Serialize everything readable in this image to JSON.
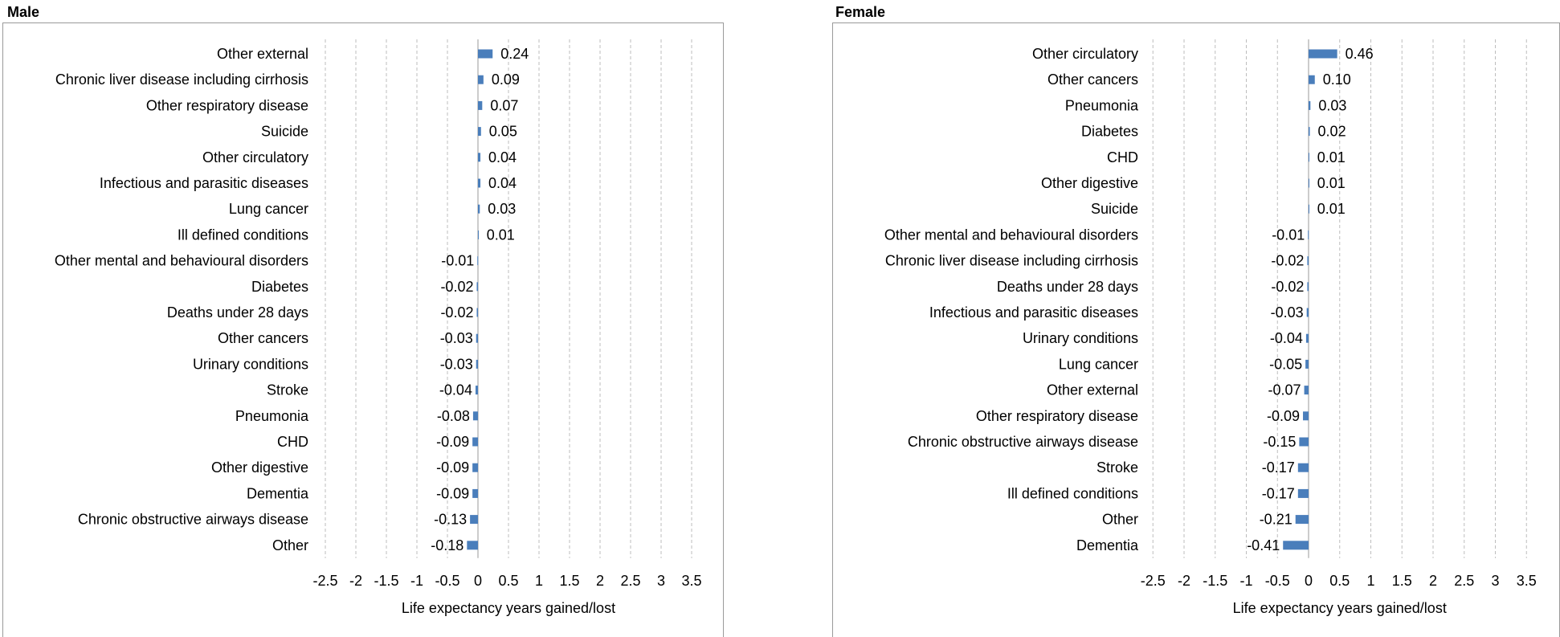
{
  "chart_data": [
    {
      "type": "bar",
      "orientation": "horizontal",
      "title": "Male",
      "xlabel": "Life expectancy years gained/lost",
      "xlim": [
        -2.5,
        3.5
      ],
      "xticks": [
        "-2.5",
        "-2",
        "-1.5",
        "-1",
        "-0.5",
        "0",
        "0.5",
        "1",
        "1.5",
        "2",
        "2.5",
        "3",
        "3.5"
      ],
      "grid": "vertical-dashed",
      "bar_color": "#4a7ebb",
      "categories": [
        "Other external",
        "Chronic liver disease including cirrhosis",
        "Other respiratory disease",
        "Suicide",
        "Other circulatory",
        "Infectious and parasitic diseases",
        "Lung cancer",
        "Ill defined conditions",
        "Other mental and behavioural disorders",
        "Diabetes",
        "Deaths under 28 days",
        "Other cancers",
        "Urinary conditions",
        "Stroke",
        "Pneumonia",
        "CHD",
        "Other digestive",
        "Dementia",
        "Chronic obstructive airways disease",
        "Other"
      ],
      "values": [
        0.24,
        0.09,
        0.07,
        0.05,
        0.04,
        0.04,
        0.03,
        0.01,
        -0.01,
        -0.02,
        -0.02,
        -0.03,
        -0.03,
        -0.04,
        -0.08,
        -0.09,
        -0.09,
        -0.09,
        -0.13,
        -0.18
      ],
      "labels": [
        "0.24",
        "0.09",
        "0.07",
        "0.05",
        "0.04",
        "0.04",
        "0.03",
        "0.01",
        "-0.01",
        "-0.02",
        "-0.02",
        "-0.03",
        "-0.03",
        "-0.04",
        "-0.08",
        "-0.09",
        "-0.09",
        "-0.09",
        "-0.13",
        "-0.18"
      ]
    },
    {
      "type": "bar",
      "orientation": "horizontal",
      "title": "Female",
      "xlabel": "Life expectancy years gained/lost",
      "xlim": [
        -2.5,
        3.5
      ],
      "xticks": [
        "-2.5",
        "-2",
        "-1.5",
        "-1",
        "-0.5",
        "0",
        "0.5",
        "1",
        "1.5",
        "2",
        "2.5",
        "3",
        "3.5"
      ],
      "grid": "vertical-dashed",
      "bar_color": "#4a7ebb",
      "categories": [
        "Other circulatory",
        "Other cancers",
        "Pneumonia",
        "Diabetes",
        "CHD",
        "Other digestive",
        "Suicide",
        "Other mental and behavioural disorders",
        "Chronic liver disease including cirrhosis",
        "Deaths under 28 days",
        "Infectious and parasitic diseases",
        "Urinary conditions",
        "Lung cancer",
        "Other external",
        "Other respiratory disease",
        "Chronic obstructive airways disease",
        "Stroke",
        "Ill defined conditions",
        "Other",
        "Dementia"
      ],
      "values": [
        0.46,
        0.1,
        0.03,
        0.02,
        0.01,
        0.01,
        0.01,
        -0.01,
        -0.02,
        -0.02,
        -0.03,
        -0.04,
        -0.05,
        -0.07,
        -0.09,
        -0.15,
        -0.17,
        -0.17,
        -0.21,
        -0.41
      ],
      "labels": [
        "0.46",
        "0.10",
        "0.03",
        "0.02",
        "0.01",
        "0.01",
        "0.01",
        "-0.01",
        "-0.02",
        "-0.02",
        "-0.03",
        "-0.04",
        "-0.05",
        "-0.07",
        "-0.09",
        "-0.15",
        "-0.17",
        "-0.17",
        "-0.21",
        "-0.41"
      ]
    }
  ]
}
